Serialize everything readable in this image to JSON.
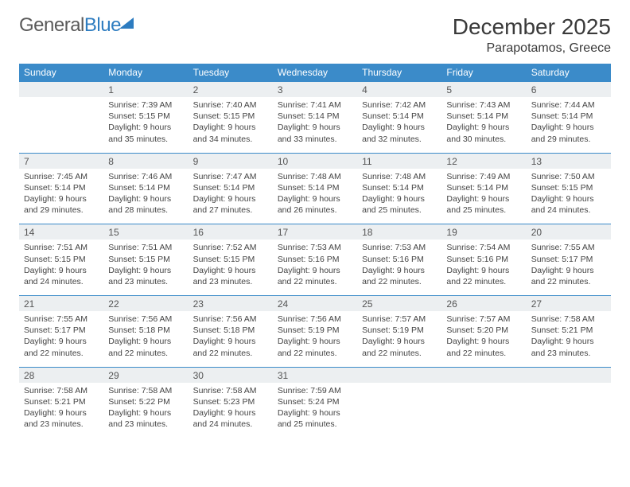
{
  "logo": {
    "part1": "General",
    "part2": "Blue"
  },
  "title": "December 2025",
  "location": "Parapotamos, Greece",
  "colors": {
    "header_bg": "#3b8bc9",
    "rule": "#2d7cc0",
    "daynum_bg": "#eceff1",
    "text": "#444444"
  },
  "day_headers": [
    "Sunday",
    "Monday",
    "Tuesday",
    "Wednesday",
    "Thursday",
    "Friday",
    "Saturday"
  ],
  "weeks": [
    [
      {
        "num": "",
        "lines": [
          "",
          "",
          "",
          ""
        ]
      },
      {
        "num": "1",
        "lines": [
          "Sunrise: 7:39 AM",
          "Sunset: 5:15 PM",
          "Daylight: 9 hours",
          "and 35 minutes."
        ]
      },
      {
        "num": "2",
        "lines": [
          "Sunrise: 7:40 AM",
          "Sunset: 5:15 PM",
          "Daylight: 9 hours",
          "and 34 minutes."
        ]
      },
      {
        "num": "3",
        "lines": [
          "Sunrise: 7:41 AM",
          "Sunset: 5:14 PM",
          "Daylight: 9 hours",
          "and 33 minutes."
        ]
      },
      {
        "num": "4",
        "lines": [
          "Sunrise: 7:42 AM",
          "Sunset: 5:14 PM",
          "Daylight: 9 hours",
          "and 32 minutes."
        ]
      },
      {
        "num": "5",
        "lines": [
          "Sunrise: 7:43 AM",
          "Sunset: 5:14 PM",
          "Daylight: 9 hours",
          "and 30 minutes."
        ]
      },
      {
        "num": "6",
        "lines": [
          "Sunrise: 7:44 AM",
          "Sunset: 5:14 PM",
          "Daylight: 9 hours",
          "and 29 minutes."
        ]
      }
    ],
    [
      {
        "num": "7",
        "lines": [
          "Sunrise: 7:45 AM",
          "Sunset: 5:14 PM",
          "Daylight: 9 hours",
          "and 29 minutes."
        ]
      },
      {
        "num": "8",
        "lines": [
          "Sunrise: 7:46 AM",
          "Sunset: 5:14 PM",
          "Daylight: 9 hours",
          "and 28 minutes."
        ]
      },
      {
        "num": "9",
        "lines": [
          "Sunrise: 7:47 AM",
          "Sunset: 5:14 PM",
          "Daylight: 9 hours",
          "and 27 minutes."
        ]
      },
      {
        "num": "10",
        "lines": [
          "Sunrise: 7:48 AM",
          "Sunset: 5:14 PM",
          "Daylight: 9 hours",
          "and 26 minutes."
        ]
      },
      {
        "num": "11",
        "lines": [
          "Sunrise: 7:48 AM",
          "Sunset: 5:14 PM",
          "Daylight: 9 hours",
          "and 25 minutes."
        ]
      },
      {
        "num": "12",
        "lines": [
          "Sunrise: 7:49 AM",
          "Sunset: 5:14 PM",
          "Daylight: 9 hours",
          "and 25 minutes."
        ]
      },
      {
        "num": "13",
        "lines": [
          "Sunrise: 7:50 AM",
          "Sunset: 5:15 PM",
          "Daylight: 9 hours",
          "and 24 minutes."
        ]
      }
    ],
    [
      {
        "num": "14",
        "lines": [
          "Sunrise: 7:51 AM",
          "Sunset: 5:15 PM",
          "Daylight: 9 hours",
          "and 24 minutes."
        ]
      },
      {
        "num": "15",
        "lines": [
          "Sunrise: 7:51 AM",
          "Sunset: 5:15 PM",
          "Daylight: 9 hours",
          "and 23 minutes."
        ]
      },
      {
        "num": "16",
        "lines": [
          "Sunrise: 7:52 AM",
          "Sunset: 5:15 PM",
          "Daylight: 9 hours",
          "and 23 minutes."
        ]
      },
      {
        "num": "17",
        "lines": [
          "Sunrise: 7:53 AM",
          "Sunset: 5:16 PM",
          "Daylight: 9 hours",
          "and 22 minutes."
        ]
      },
      {
        "num": "18",
        "lines": [
          "Sunrise: 7:53 AM",
          "Sunset: 5:16 PM",
          "Daylight: 9 hours",
          "and 22 minutes."
        ]
      },
      {
        "num": "19",
        "lines": [
          "Sunrise: 7:54 AM",
          "Sunset: 5:16 PM",
          "Daylight: 9 hours",
          "and 22 minutes."
        ]
      },
      {
        "num": "20",
        "lines": [
          "Sunrise: 7:55 AM",
          "Sunset: 5:17 PM",
          "Daylight: 9 hours",
          "and 22 minutes."
        ]
      }
    ],
    [
      {
        "num": "21",
        "lines": [
          "Sunrise: 7:55 AM",
          "Sunset: 5:17 PM",
          "Daylight: 9 hours",
          "and 22 minutes."
        ]
      },
      {
        "num": "22",
        "lines": [
          "Sunrise: 7:56 AM",
          "Sunset: 5:18 PM",
          "Daylight: 9 hours",
          "and 22 minutes."
        ]
      },
      {
        "num": "23",
        "lines": [
          "Sunrise: 7:56 AM",
          "Sunset: 5:18 PM",
          "Daylight: 9 hours",
          "and 22 minutes."
        ]
      },
      {
        "num": "24",
        "lines": [
          "Sunrise: 7:56 AM",
          "Sunset: 5:19 PM",
          "Daylight: 9 hours",
          "and 22 minutes."
        ]
      },
      {
        "num": "25",
        "lines": [
          "Sunrise: 7:57 AM",
          "Sunset: 5:19 PM",
          "Daylight: 9 hours",
          "and 22 minutes."
        ]
      },
      {
        "num": "26",
        "lines": [
          "Sunrise: 7:57 AM",
          "Sunset: 5:20 PM",
          "Daylight: 9 hours",
          "and 22 minutes."
        ]
      },
      {
        "num": "27",
        "lines": [
          "Sunrise: 7:58 AM",
          "Sunset: 5:21 PM",
          "Daylight: 9 hours",
          "and 23 minutes."
        ]
      }
    ],
    [
      {
        "num": "28",
        "lines": [
          "Sunrise: 7:58 AM",
          "Sunset: 5:21 PM",
          "Daylight: 9 hours",
          "and 23 minutes."
        ]
      },
      {
        "num": "29",
        "lines": [
          "Sunrise: 7:58 AM",
          "Sunset: 5:22 PM",
          "Daylight: 9 hours",
          "and 23 minutes."
        ]
      },
      {
        "num": "30",
        "lines": [
          "Sunrise: 7:58 AM",
          "Sunset: 5:23 PM",
          "Daylight: 9 hours",
          "and 24 minutes."
        ]
      },
      {
        "num": "31",
        "lines": [
          "Sunrise: 7:59 AM",
          "Sunset: 5:24 PM",
          "Daylight: 9 hours",
          "and 25 minutes."
        ]
      },
      {
        "num": "",
        "lines": [
          "",
          "",
          "",
          ""
        ]
      },
      {
        "num": "",
        "lines": [
          "",
          "",
          "",
          ""
        ]
      },
      {
        "num": "",
        "lines": [
          "",
          "",
          "",
          ""
        ]
      }
    ]
  ]
}
